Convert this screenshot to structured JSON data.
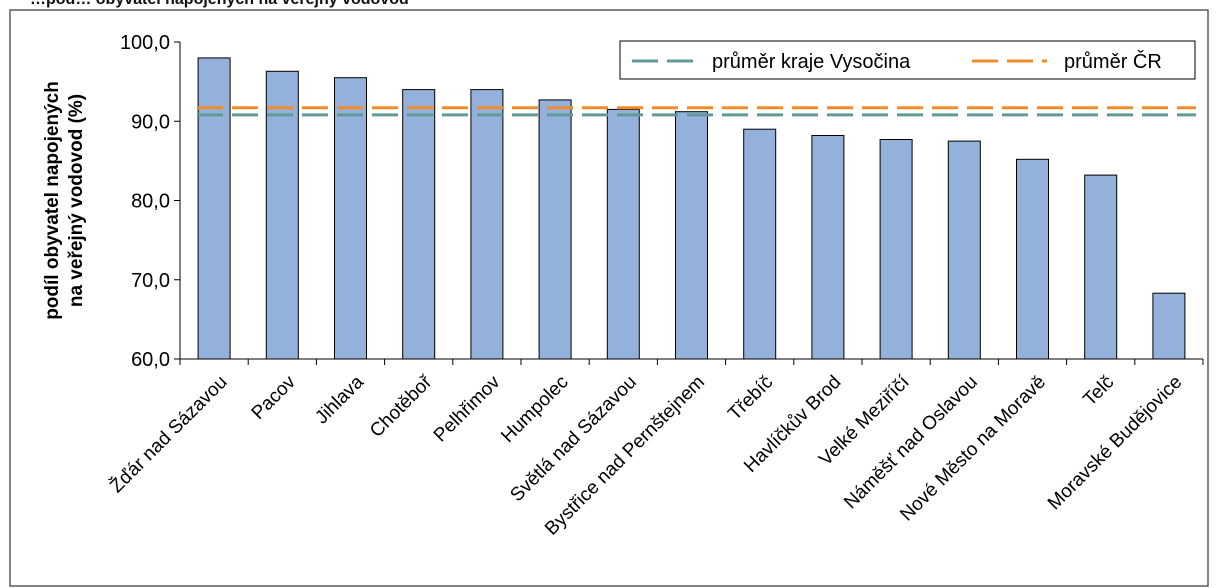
{
  "header": {
    "cut_title": "…pod… obyvatel napojených na veřejný vodovod"
  },
  "chart_data": {
    "type": "bar",
    "title": "",
    "xlabel": "",
    "ylabel": "podíl obyvatel napojených na veřejný vodovod (%)",
    "ylabel_lines": [
      "podíl obyvatel napojených",
      "na veřejný vodovod (%)"
    ],
    "ylim": [
      60,
      100
    ],
    "yticks": [
      "100,0",
      "90,0",
      "80,0",
      "70,0",
      "60,0"
    ],
    "ytick_values": [
      100,
      90,
      80,
      70,
      60
    ],
    "categories": [
      "Žďár nad Sázavou",
      "Pacov",
      "Jihlava",
      "Chotěboř",
      "Pelhřimov",
      "Humpolec",
      "Světlá nad Sázavou",
      "Bystřice nad Pernštejnem",
      "Třebíč",
      "Havlíčkův Brod",
      "Velké Meziříčí",
      "Náměšť nad Oslavou",
      "Nové Město na Moravě",
      "Telč",
      "Moravské Budějovice"
    ],
    "values": [
      98.0,
      96.3,
      95.5,
      94.0,
      94.0,
      92.7,
      91.5,
      91.2,
      89.0,
      88.2,
      87.7,
      87.5,
      85.2,
      83.2,
      68.3
    ],
    "reference_lines": [
      {
        "name": "průměr kraje Vysočina",
        "value": 90.8,
        "color": "#5f9a97"
      },
      {
        "name": "průměr ČR",
        "value": 91.7,
        "color": "#f28c28"
      }
    ],
    "bar_color": "#94b1dc",
    "grid": false,
    "legend_position": "top-right"
  }
}
